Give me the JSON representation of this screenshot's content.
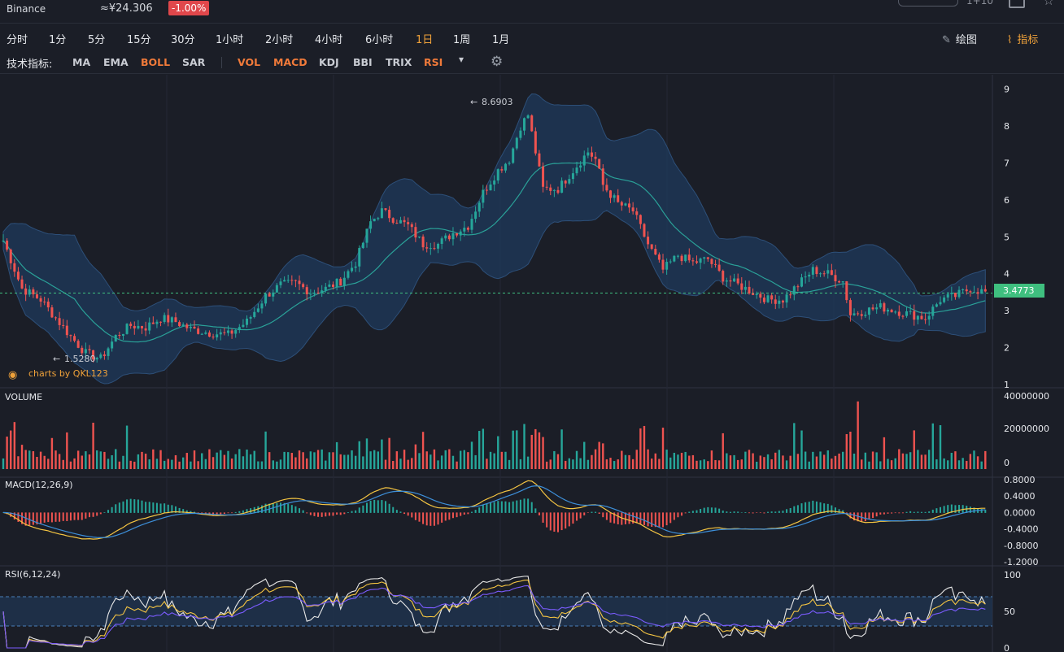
{
  "header": {
    "exchange": "Binance",
    "price": "≈¥24.306",
    "change": "-1.00%",
    "right_text": "1+10"
  },
  "timeframes": [
    {
      "label": "分时"
    },
    {
      "label": "1分"
    },
    {
      "label": "5分"
    },
    {
      "label": "15分"
    },
    {
      "label": "30分"
    },
    {
      "label": "1小时"
    },
    {
      "label": "2小时"
    },
    {
      "label": "4小时"
    },
    {
      "label": "6小时"
    },
    {
      "label": "1日"
    },
    {
      "label": "1周"
    },
    {
      "label": "1月"
    }
  ],
  "active_timeframe": "1日",
  "toolbar": {
    "draw_label": "绘图",
    "indicator_label": "指标"
  },
  "indicators": {
    "label": "技术指标:",
    "main": [
      {
        "label": "MA"
      },
      {
        "label": "EMA"
      },
      {
        "label": "BOLL"
      },
      {
        "label": "SAR"
      }
    ],
    "sub": [
      {
        "label": "VOL"
      },
      {
        "label": "MACD"
      },
      {
        "label": "KDJ"
      },
      {
        "label": "BBI"
      },
      {
        "label": "TRIX"
      },
      {
        "label": "RSI"
      }
    ],
    "active": [
      "BOLL",
      "VOL",
      "MACD",
      "RSI"
    ]
  },
  "colors": {
    "up": "#26a69a",
    "down": "#ef5350",
    "accent": "#f0a23a",
    "band": "#1f3a5c",
    "mid": "#2aa198",
    "current": "#3fbf7f"
  },
  "chart_data": {
    "type": "candlestick",
    "watermark": "charts by QKL123",
    "price_axis": {
      "ticks": [
        9,
        8,
        7,
        6,
        5,
        4,
        3,
        2,
        1
      ],
      "ylim": [
        1,
        9.3
      ]
    },
    "current_price": "3.4773",
    "high_label": "8.6903",
    "low_label": "1.5280",
    "series_anchors": [
      [
        0,
        4.9
      ],
      [
        5,
        3.6
      ],
      [
        10,
        3.3
      ],
      [
        14,
        2.8
      ],
      [
        18,
        2.3
      ],
      [
        22,
        1.85
      ],
      [
        26,
        1.7
      ],
      [
        30,
        2.3
      ],
      [
        34,
        2.6
      ],
      [
        38,
        2.55
      ],
      [
        42,
        2.8
      ],
      [
        46,
        2.7
      ],
      [
        50,
        2.5
      ],
      [
        55,
        2.4
      ],
      [
        60,
        2.35
      ],
      [
        65,
        2.7
      ],
      [
        70,
        3.4
      ],
      [
        74,
        3.7
      ],
      [
        78,
        3.75
      ],
      [
        82,
        3.5
      ],
      [
        86,
        3.6
      ],
      [
        90,
        3.8
      ],
      [
        94,
        4.3
      ],
      [
        98,
        5.4
      ],
      [
        101,
        5.7
      ],
      [
        104,
        5.5
      ],
      [
        108,
        5.3
      ],
      [
        112,
        4.8
      ],
      [
        116,
        4.8
      ],
      [
        120,
        5.1
      ],
      [
        124,
        5.3
      ],
      [
        128,
        6.2
      ],
      [
        132,
        6.8
      ],
      [
        135,
        7.1
      ],
      [
        138,
        8.0
      ],
      [
        140,
        8.3
      ],
      [
        142,
        7.3
      ],
      [
        144,
        6.3
      ],
      [
        148,
        6.3
      ],
      [
        152,
        6.8
      ],
      [
        156,
        7.3
      ],
      [
        158,
        7.1
      ],
      [
        160,
        6.4
      ],
      [
        164,
        5.9
      ],
      [
        168,
        5.7
      ],
      [
        172,
        4.8
      ],
      [
        176,
        4.1
      ],
      [
        180,
        4.5
      ],
      [
        184,
        4.3
      ],
      [
        188,
        4.4
      ],
      [
        192,
        3.9
      ],
      [
        196,
        3.7
      ],
      [
        200,
        3.5
      ],
      [
        204,
        3.3
      ],
      [
        208,
        3.3
      ],
      [
        212,
        3.7
      ],
      [
        216,
        4.1
      ],
      [
        220,
        4.0
      ],
      [
        224,
        3.8
      ],
      [
        226,
        2.9
      ],
      [
        230,
        3.0
      ],
      [
        234,
        3.1
      ],
      [
        238,
        3.0
      ],
      [
        242,
        2.9
      ],
      [
        246,
        2.8
      ],
      [
        250,
        3.3
      ],
      [
        254,
        3.4
      ],
      [
        258,
        3.6
      ],
      [
        262,
        3.5
      ]
    ],
    "volume_axis": {
      "ticks": [
        "40000000",
        "20000000",
        "0"
      ],
      "max": 40000000
    },
    "macd": {
      "label": "MACD(12,26,9)",
      "ticks": [
        "0.8000",
        "0.4000",
        "0.0000",
        "-0.4000",
        "-0.8000",
        "-1.2000"
      ],
      "range": [
        -1.2,
        0.8
      ]
    },
    "rsi": {
      "label": "RSI(6,12,24)",
      "ticks": [
        "100",
        "50",
        "0"
      ],
      "upper": 70,
      "lower": 30
    }
  },
  "volume_label": "VOLUME"
}
